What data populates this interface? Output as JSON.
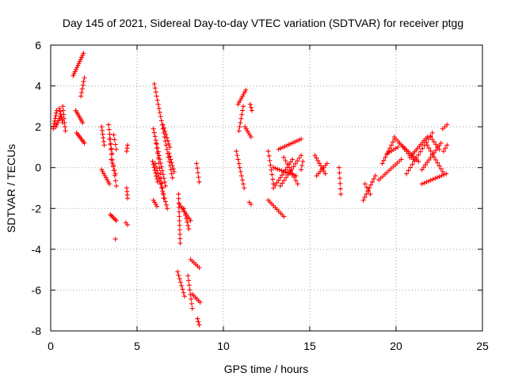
{
  "chart_data": {
    "type": "scatter",
    "title": "Day 145 of 2021, Sidereal Day-to-day VTEC variation (SDTVAR) for receiver ptgg",
    "xlabel": "GPS time / hours",
    "ylabel": "SDTVAR / TECUs",
    "xlim": [
      0,
      25
    ],
    "ylim": [
      -8,
      6
    ],
    "xticks": [
      0,
      5,
      10,
      15,
      20,
      25
    ],
    "yticks": [
      -8,
      -6,
      -4,
      -2,
      0,
      2,
      4,
      6
    ],
    "grid": true,
    "marker": "plus",
    "marker_color": "#ff0000",
    "segments": [
      {
        "x0": 0.15,
        "y0": 1.9,
        "x1": 0.35,
        "y1": 2.8,
        "n": 8
      },
      {
        "x0": 0.3,
        "y0": 2.0,
        "x1": 0.55,
        "y1": 2.5,
        "n": 6
      },
      {
        "x0": 0.5,
        "y0": 2.9,
        "x1": 0.7,
        "y1": 2.2,
        "n": 6
      },
      {
        "x0": 0.7,
        "y0": 3.0,
        "x1": 0.85,
        "y1": 1.8,
        "n": 7
      },
      {
        "x0": 1.3,
        "y0": 4.5,
        "x1": 1.9,
        "y1": 5.6,
        "n": 12
      },
      {
        "x0": 1.45,
        "y0": 2.8,
        "x1": 1.85,
        "y1": 2.2,
        "n": 8
      },
      {
        "x0": 1.5,
        "y0": 1.7,
        "x1": 1.95,
        "y1": 1.2,
        "n": 8
      },
      {
        "x0": 1.75,
        "y0": 3.5,
        "x1": 1.95,
        "y1": 4.4,
        "n": 6
      },
      {
        "x0": 2.95,
        "y0": 2.0,
        "x1": 3.1,
        "y1": 1.1,
        "n": 6
      },
      {
        "x0": 2.95,
        "y0": -0.1,
        "x1": 3.4,
        "y1": -0.8,
        "n": 8
      },
      {
        "x0": 3.35,
        "y0": 2.1,
        "x1": 3.55,
        "y1": 0.7,
        "n": 7
      },
      {
        "x0": 3.4,
        "y0": 1.4,
        "x1": 3.8,
        "y1": -0.9,
        "n": 10
      },
      {
        "x0": 3.5,
        "y0": 0.4,
        "x1": 3.75,
        "y1": -0.3,
        "n": 5
      },
      {
        "x0": 3.45,
        "y0": -2.3,
        "x1": 3.8,
        "y1": -2.6,
        "n": 6
      },
      {
        "x0": 3.65,
        "y0": 1.6,
        "x1": 3.8,
        "y1": 0.9,
        "n": 4
      },
      {
        "x0": 3.75,
        "y0": -3.5,
        "x1": 3.75,
        "y1": -3.5,
        "n": 1
      },
      {
        "x0": 4.4,
        "y0": -1.0,
        "x1": 4.45,
        "y1": -1.5,
        "n": 4
      },
      {
        "x0": 4.35,
        "y0": -2.7,
        "x1": 4.45,
        "y1": -2.8,
        "n": 2
      },
      {
        "x0": 4.4,
        "y0": 0.8,
        "x1": 4.45,
        "y1": 1.1,
        "n": 3
      },
      {
        "x0": 6.0,
        "y0": 4.1,
        "x1": 7.05,
        "y1": -0.5,
        "n": 24
      },
      {
        "x0": 5.95,
        "y0": 1.9,
        "x1": 6.65,
        "y1": -0.9,
        "n": 16
      },
      {
        "x0": 6.05,
        "y0": 0.2,
        "x1": 6.75,
        "y1": -2.0,
        "n": 14
      },
      {
        "x0": 6.1,
        "y0": 1.2,
        "x1": 6.55,
        "y1": -1.5,
        "n": 12
      },
      {
        "x0": 5.9,
        "y0": 0.3,
        "x1": 6.2,
        "y1": -0.7,
        "n": 8
      },
      {
        "x0": 5.95,
        "y0": -1.6,
        "x1": 6.15,
        "y1": -1.9,
        "n": 4
      },
      {
        "x0": 6.5,
        "y0": 2.1,
        "x1": 6.9,
        "y1": 1.0,
        "n": 8
      },
      {
        "x0": 6.85,
        "y0": 0.7,
        "x1": 7.15,
        "y1": -0.2,
        "n": 7
      },
      {
        "x0": 7.4,
        "y0": -1.3,
        "x1": 7.5,
        "y1": -3.7,
        "n": 12
      },
      {
        "x0": 7.45,
        "y0": -1.8,
        "x1": 8.1,
        "y1": -2.6,
        "n": 10
      },
      {
        "x0": 7.7,
        "y0": -2.0,
        "x1": 8.0,
        "y1": -3.0,
        "n": 7
      },
      {
        "x0": 7.35,
        "y0": -5.1,
        "x1": 7.75,
        "y1": -6.3,
        "n": 8
      },
      {
        "x0": 7.95,
        "y0": -5.3,
        "x1": 8.2,
        "y1": -6.9,
        "n": 8
      },
      {
        "x0": 8.1,
        "y0": -4.5,
        "x1": 8.6,
        "y1": -4.9,
        "n": 6
      },
      {
        "x0": 8.2,
        "y0": -6.2,
        "x1": 8.65,
        "y1": -6.6,
        "n": 6
      },
      {
        "x0": 8.5,
        "y0": -7.4,
        "x1": 8.6,
        "y1": -7.7,
        "n": 3
      },
      {
        "x0": 8.45,
        "y0": 0.2,
        "x1": 8.6,
        "y1": -0.7,
        "n": 5
      },
      {
        "x0": 10.85,
        "y0": 3.1,
        "x1": 11.3,
        "y1": 3.8,
        "n": 8
      },
      {
        "x0": 10.9,
        "y0": 1.8,
        "x1": 11.15,
        "y1": 3.0,
        "n": 7
      },
      {
        "x0": 11.25,
        "y0": 2.0,
        "x1": 11.6,
        "y1": 1.5,
        "n": 6
      },
      {
        "x0": 11.55,
        "y0": 3.1,
        "x1": 11.65,
        "y1": 2.8,
        "n": 3
      },
      {
        "x0": 10.75,
        "y0": 0.8,
        "x1": 11.2,
        "y1": -1.0,
        "n": 10
      },
      {
        "x0": 11.5,
        "y0": -1.7,
        "x1": 11.6,
        "y1": -1.8,
        "n": 2
      },
      {
        "x0": 12.6,
        "y0": 0.8,
        "x1": 12.9,
        "y1": -0.8,
        "n": 8
      },
      {
        "x0": 12.6,
        "y0": -1.6,
        "x1": 13.5,
        "y1": -2.4,
        "n": 10
      },
      {
        "x0": 12.9,
        "y0": -1.0,
        "x1": 14.0,
        "y1": 0.4,
        "n": 12
      },
      {
        "x0": 12.9,
        "y0": 0.0,
        "x1": 14.2,
        "y1": -0.4,
        "n": 12
      },
      {
        "x0": 13.2,
        "y0": 0.9,
        "x1": 14.5,
        "y1": 1.4,
        "n": 12
      },
      {
        "x0": 13.3,
        "y0": -0.9,
        "x1": 14.5,
        "y1": 0.6,
        "n": 12
      },
      {
        "x0": 13.5,
        "y0": 0.5,
        "x1": 14.3,
        "y1": -0.8,
        "n": 9
      },
      {
        "x0": 14.5,
        "y0": -0.1,
        "x1": 14.6,
        "y1": 0.3,
        "n": 3
      },
      {
        "x0": 15.3,
        "y0": 0.6,
        "x1": 15.9,
        "y1": -0.3,
        "n": 8
      },
      {
        "x0": 15.4,
        "y0": -0.4,
        "x1": 16.0,
        "y1": 0.2,
        "n": 7
      },
      {
        "x0": 16.7,
        "y0": 0.0,
        "x1": 16.8,
        "y1": -1.3,
        "n": 6
      },
      {
        "x0": 18.1,
        "y0": -1.6,
        "x1": 18.8,
        "y1": -0.4,
        "n": 9
      },
      {
        "x0": 18.2,
        "y0": -0.8,
        "x1": 18.5,
        "y1": -1.3,
        "n": 4
      },
      {
        "x0": 19.0,
        "y0": -0.6,
        "x1": 20.3,
        "y1": 0.4,
        "n": 12
      },
      {
        "x0": 19.2,
        "y0": 0.2,
        "x1": 19.9,
        "y1": 1.4,
        "n": 9
      },
      {
        "x0": 19.5,
        "y0": 0.7,
        "x1": 20.1,
        "y1": 1.0,
        "n": 6
      },
      {
        "x0": 19.9,
        "y0": 1.5,
        "x1": 21.0,
        "y1": 0.4,
        "n": 12
      },
      {
        "x0": 20.2,
        "y0": 1.2,
        "x1": 21.3,
        "y1": 0.3,
        "n": 12
      },
      {
        "x0": 20.8,
        "y0": 0.5,
        "x1": 21.8,
        "y1": 1.5,
        "n": 12
      },
      {
        "x0": 20.6,
        "y0": -0.3,
        "x1": 22.1,
        "y1": 1.7,
        "n": 14
      },
      {
        "x0": 21.5,
        "y0": -0.1,
        "x1": 22.6,
        "y1": 1.2,
        "n": 12
      },
      {
        "x0": 21.8,
        "y0": 1.1,
        "x1": 22.7,
        "y1": -0.2,
        "n": 10
      },
      {
        "x0": 21.5,
        "y0": -0.8,
        "x1": 22.9,
        "y1": -0.3,
        "n": 12
      },
      {
        "x0": 22.0,
        "y0": 1.5,
        "x1": 22.5,
        "y1": 0.9,
        "n": 6
      },
      {
        "x0": 22.7,
        "y0": 1.9,
        "x1": 22.95,
        "y1": 2.1,
        "n": 3
      },
      {
        "x0": 22.75,
        "y0": 0.8,
        "x1": 22.95,
        "y1": 1.1,
        "n": 3
      }
    ]
  }
}
